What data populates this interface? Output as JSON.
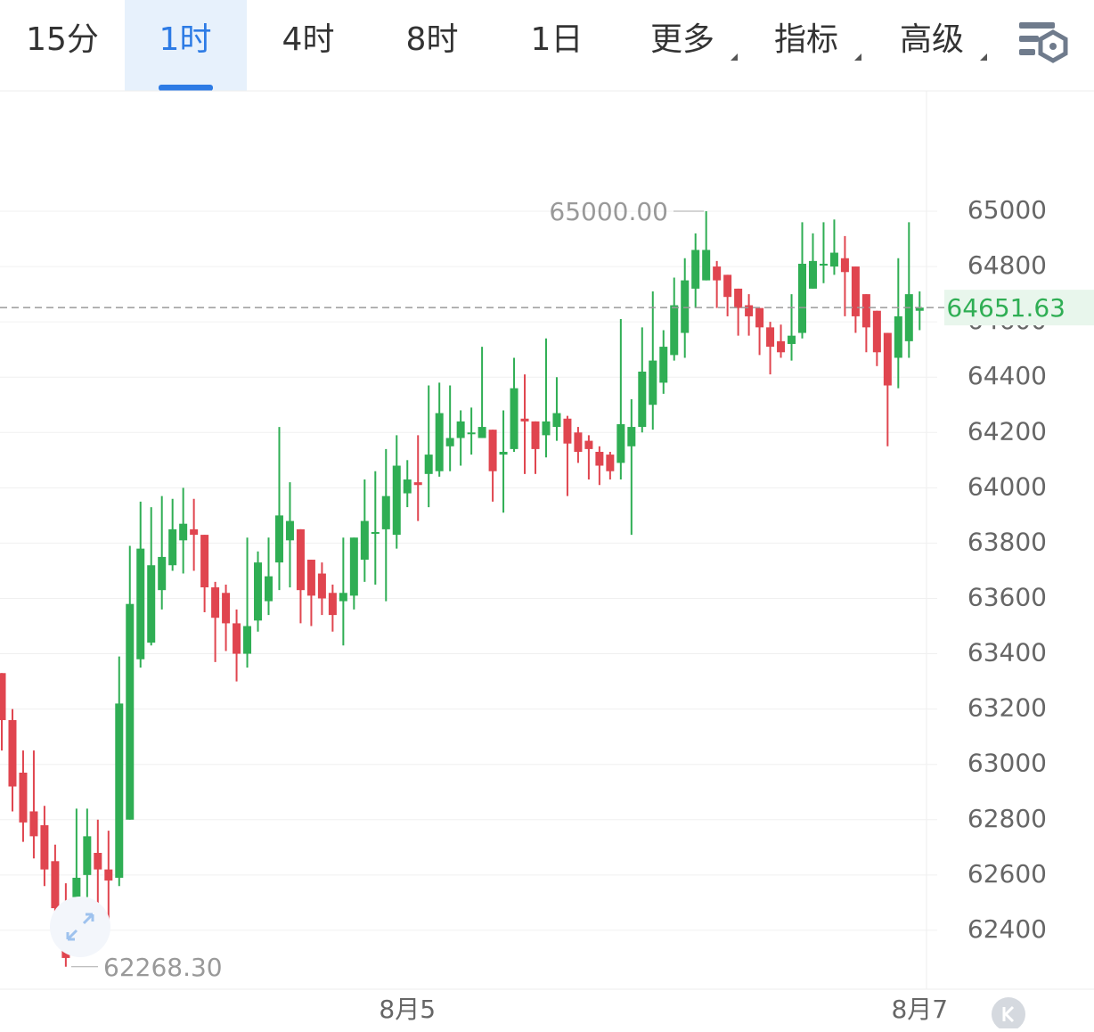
{
  "tabs": {
    "items": [
      "15分",
      "1时",
      "4时",
      "8时",
      "1日",
      "更多",
      "指标",
      "高级"
    ],
    "active": 1
  },
  "chart_data": {
    "type": "candlestick",
    "categories": [
      null,
      null,
      null,
      null,
      null,
      null,
      null,
      null,
      null,
      null,
      null,
      null,
      null,
      null,
      null,
      null,
      null,
      null,
      null,
      null,
      null,
      null,
      null,
      null,
      null,
      null,
      null,
      null,
      null,
      null,
      null,
      null,
      null,
      null,
      null,
      null,
      null,
      null,
      "8月5",
      null,
      null,
      null,
      null,
      null,
      null,
      null,
      null,
      null,
      null,
      null,
      null,
      null,
      null,
      null,
      null,
      null,
      null,
      null,
      null,
      null,
      null,
      null,
      null,
      null,
      null,
      null,
      null,
      null,
      null,
      null,
      null,
      null,
      null,
      null,
      null,
      null,
      null,
      null,
      null,
      null,
      null,
      null,
      null,
      null,
      null,
      null,
      "8月7"
    ],
    "open": [
      63330,
      63160,
      62970,
      62830,
      62780,
      62650,
      62480,
      62520,
      62600,
      62680,
      62620,
      62590,
      62800,
      63380,
      63440,
      63630,
      63720,
      63810,
      63850,
      63830,
      63640,
      63620,
      63510,
      63400,
      63520,
      63590,
      63730,
      63810,
      63850,
      63740,
      63690,
      63620,
      63590,
      63610,
      63740,
      63840,
      63850,
      63830,
      63980,
      64020,
      64050,
      64060,
      64150,
      64180,
      64200,
      64180,
      64210,
      64120,
      64140,
      64250,
      64240,
      64190,
      64220,
      64250,
      64200,
      64170,
      64130,
      64120,
      64090,
      64150,
      64220,
      64300,
      64380,
      64480,
      64560,
      64720,
      64750,
      64800,
      64770,
      64720,
      64660,
      64650,
      64580,
      64530,
      64520,
      64560,
      64720,
      64810,
      64800,
      64830,
      64800,
      64700,
      64640,
      64560,
      64470,
      64530,
      64640
    ],
    "high": [
      63330,
      63200,
      63050,
      63050,
      62850,
      62710,
      62570,
      62840,
      62840,
      62800,
      62760,
      63390,
      63790,
      63950,
      63930,
      63970,
      63960,
      64000,
      63960,
      63830,
      63660,
      63650,
      63560,
      63820,
      63770,
      63820,
      64220,
      64020,
      63850,
      63740,
      63730,
      63650,
      63820,
      63820,
      64030,
      64060,
      64140,
      64190,
      64100,
      64190,
      64370,
      64380,
      64370,
      64280,
      64290,
      64510,
      64210,
      64280,
      64470,
      64410,
      64240,
      64540,
      64400,
      64260,
      64220,
      64190,
      64150,
      64130,
      64610,
      64320,
      64580,
      64710,
      64570,
      64760,
      64830,
      64920,
      65000,
      64820,
      64770,
      64720,
      64700,
      64650,
      64600,
      64590,
      64700,
      64960,
      64920,
      64960,
      64970,
      64910,
      64800,
      64700,
      64640,
      64560,
      64830,
      64960,
      64710
    ],
    "low": [
      63050,
      62830,
      62720,
      62660,
      62560,
      62440,
      62268.3,
      62480,
      62520,
      62440,
      62420,
      62560,
      62800,
      63350,
      63430,
      63560,
      63700,
      63690,
      63700,
      63550,
      63370,
      63410,
      63300,
      63350,
      63480,
      63540,
      63630,
      63640,
      63510,
      63500,
      63540,
      63480,
      63430,
      63560,
      63660,
      63650,
      63590,
      63780,
      63930,
      63880,
      63930,
      64040,
      64060,
      64080,
      64120,
      64180,
      63950,
      63910,
      64130,
      64050,
      64050,
      64110,
      64170,
      63970,
      64090,
      64030,
      64010,
      64030,
      64030,
      63830,
      64200,
      64210,
      64340,
      64460,
      64470,
      64650,
      64750,
      64650,
      64620,
      64550,
      64550,
      64480,
      64410,
      64470,
      64460,
      64540,
      64720,
      64740,
      64770,
      64620,
      64560,
      64490,
      64440,
      64150,
      64360,
      64470,
      64570
    ],
    "close": [
      63160,
      62920,
      62790,
      62740,
      62620,
      62480,
      62300,
      62590,
      62740,
      62620,
      62580,
      63220,
      63580,
      63780,
      63720,
      63750,
      63850,
      63870,
      63830,
      63640,
      63530,
      63510,
      63400,
      63500,
      63730,
      63680,
      63900,
      63880,
      63630,
      63610,
      63600,
      63540,
      63620,
      63820,
      63880,
      63840,
      63970,
      64080,
      64030,
      64010,
      64120,
      64270,
      64180,
      64240,
      64200,
      64220,
      64060,
      64130,
      64360,
      64240,
      64140,
      64240,
      64270,
      64160,
      64130,
      64140,
      64080,
      64060,
      64230,
      64220,
      64420,
      64460,
      64510,
      64660,
      64750,
      64860,
      64860,
      64750,
      64690,
      64650,
      64620,
      64580,
      64510,
      64490,
      64550,
      64810,
      64820,
      64810,
      64850,
      64780,
      64620,
      64580,
      64490,
      64370,
      64620,
      64700,
      64651.63
    ],
    "up_color": "#2fae54",
    "down_color": "#e0454f",
    "ylim": [
      62187,
      65435
    ],
    "yticks": [
      62400,
      62600,
      62800,
      63000,
      63200,
      63400,
      63600,
      63800,
      64000,
      64200,
      64400,
      64600,
      64800,
      65000
    ],
    "grid": true,
    "high_annotation": {
      "value": 65000,
      "label": "65000.00"
    },
    "low_annotation": {
      "value": 62268.3,
      "label": "62268.30"
    },
    "last_price": {
      "value": 64651.63,
      "label": "64651.63"
    }
  }
}
